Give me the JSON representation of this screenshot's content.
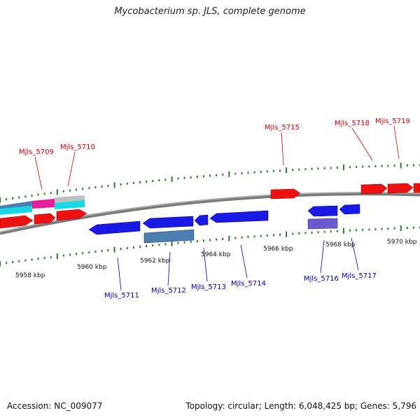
{
  "title": "Mycobacterium sp. JLS, complete genome",
  "footer": {
    "accession": "Accession: NC_009077",
    "stats": "Topology: circular; Length: 6,048,425 bp; Genes: 5,796"
  },
  "colors": {
    "forward_gene": "#ee1111",
    "reverse_gene": "#1a1ae6",
    "tick": "#2a7a2a",
    "backbone": "#777777",
    "forward_label": "#cc0000",
    "reverse_label": "#0000aa",
    "magenta": "#e61e9e",
    "cyan": "#18d8e6",
    "steel": "#4a7fb0",
    "violet": "#6a5acd",
    "silver": "#c0c0c0"
  },
  "scale_labels": [
    "5958 kbp",
    "5960 kbp",
    "5962 kbp",
    "5964 kbp",
    "5966 kbp",
    "5968 kbp",
    "5970 kbp"
  ],
  "forward_labels": [
    "Mjls_5709",
    "Mjls_5710",
    "Mjls_5715",
    "Mjls_5718",
    "Mjls_5719"
  ],
  "reverse_labels": [
    "Mjls_5711",
    "Mjls_5712",
    "Mjls_5713",
    "Mjls_5714",
    "Mjls_5716",
    "Mjls_5717"
  ]
}
